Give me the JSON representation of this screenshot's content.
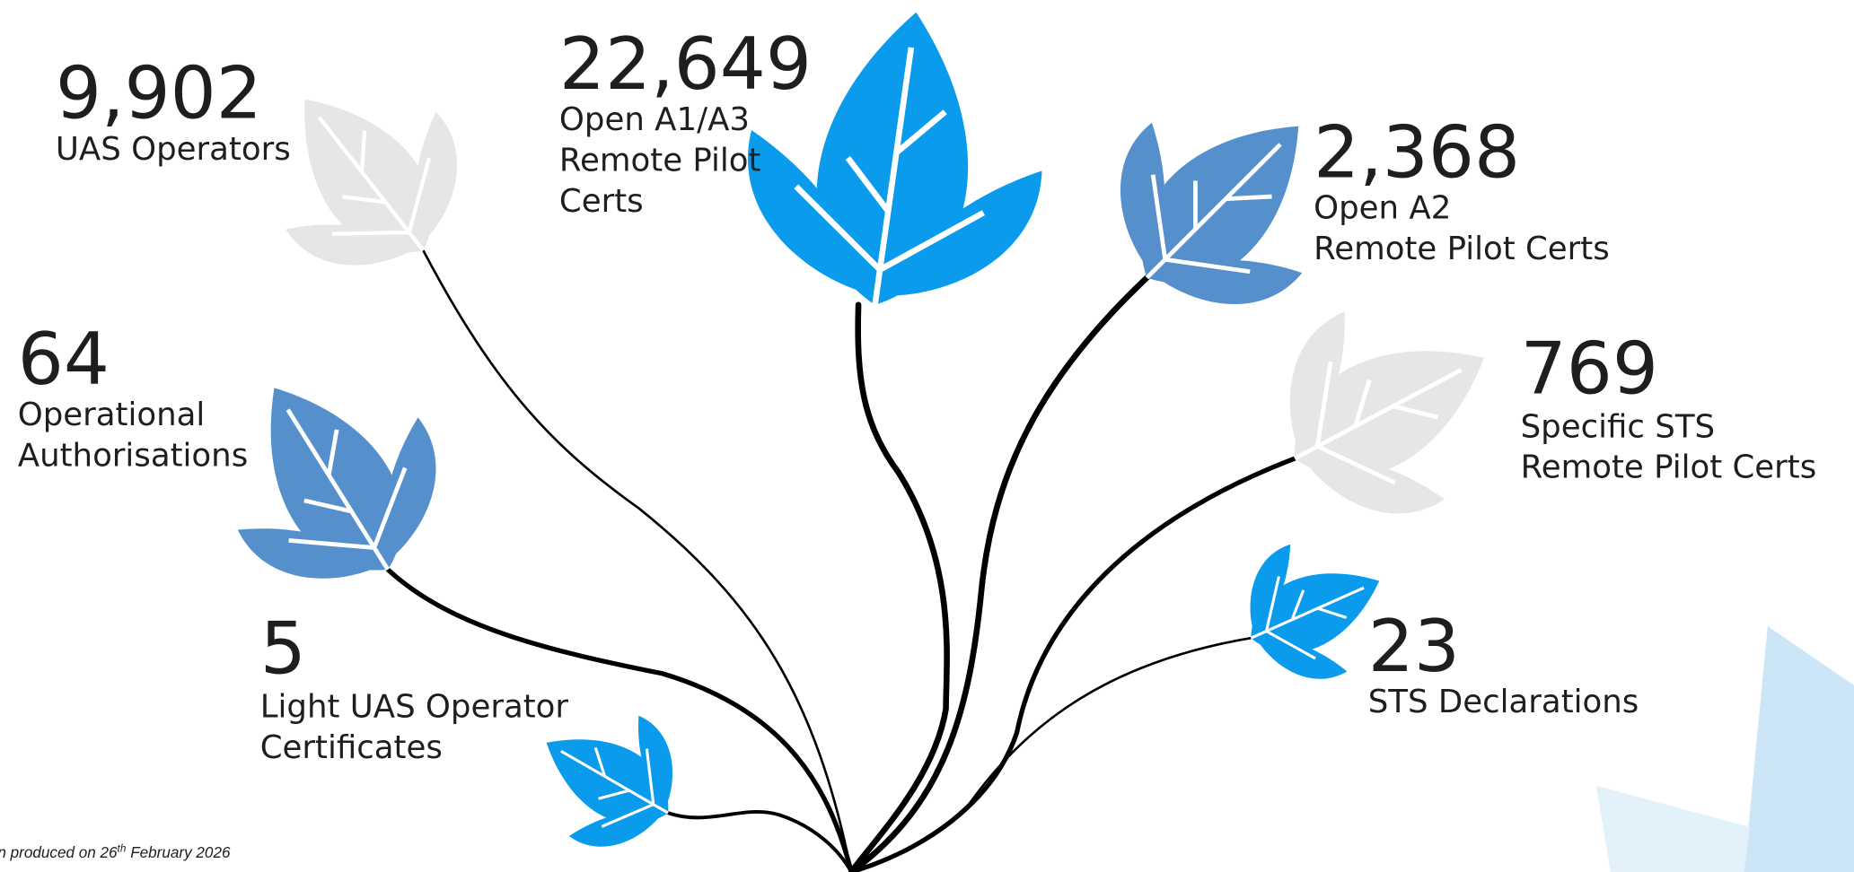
{
  "stats": [
    {
      "number": "9,902",
      "label": [
        "UAS Operators"
      ]
    },
    {
      "number": "22,649",
      "label": [
        "Open A1/A3",
        "Remote Pilot",
        "Certs"
      ]
    },
    {
      "number": "2,368",
      "label": [
        "Open A2",
        "Remote Pilot Certs"
      ]
    },
    {
      "number": "64",
      "label": [
        "Operational",
        "Authorisations"
      ]
    },
    {
      "number": "769",
      "label": [
        "Specific STS",
        "Remote Pilot Certs"
      ]
    },
    {
      "number": "5",
      "label": [
        "Light UAS Operator",
        "Certificates"
      ]
    },
    {
      "number": "23",
      "label": [
        "STS Declarations"
      ]
    }
  ],
  "footnote": {
    "before": "n produced on 26",
    "sup": "th",
    "after": " February 2026"
  }
}
